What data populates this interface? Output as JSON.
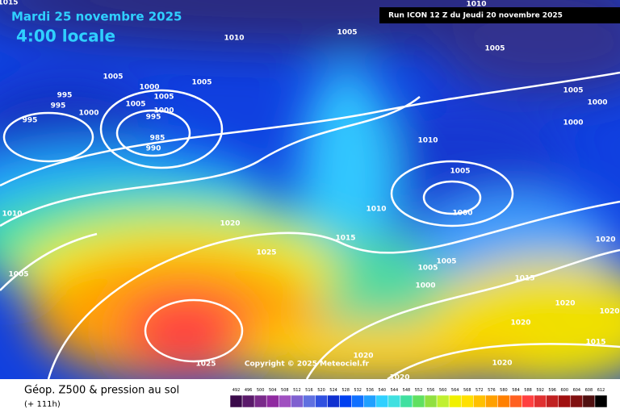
{
  "header": {
    "date": "Mardi 25 novembre 2025",
    "time": "4:00 locale",
    "run": "Run ICON 12 Z du Jeudi 20 novembre 2025"
  },
  "map": {
    "copyright": "Copyright © 2025 Meteociel.fr",
    "isobar_labels": [
      1015,
      1010,
      1005,
      1010,
      1005,
      1005,
      1000,
      1005,
      995,
      995,
      1005,
      1005,
      1000,
      1000,
      995,
      995,
      985,
      990,
      1005,
      1000,
      1000,
      1010,
      1005,
      1000,
      1010,
      1010,
      1020,
      1015,
      1025,
      1020,
      1005,
      1005,
      1005,
      1000,
      1015,
      1020,
      1020,
      1020,
      1015,
      1020,
      1020,
      1025,
      1020
    ]
  },
  "footer": {
    "title": "Géop. Z500 & pression au sol",
    "lead": "(+ 111h)"
  },
  "legend": {
    "scale": [
      492,
      496,
      500,
      504,
      508,
      512,
      516,
      520,
      524,
      528,
      532,
      536,
      540,
      544,
      548,
      552,
      556,
      560,
      564,
      568,
      572,
      576,
      580,
      584,
      588,
      592,
      596,
      600,
      604,
      608,
      612
    ],
    "colors": [
      "#3a0a4a",
      "#5a1a6a",
      "#7a2a8a",
      "#902aa0",
      "#a050c0",
      "#8060d0",
      "#6070e0",
      "#3050e0",
      "#1030d0",
      "#0040f0",
      "#1070ff",
      "#20a0ff",
      "#30d0ff",
      "#40e0e0",
      "#40e0a0",
      "#60e060",
      "#90e040",
      "#c0f030",
      "#f0f000",
      "#ffe000",
      "#ffc000",
      "#ffa000",
      "#ff8000",
      "#ff6020",
      "#ff4040",
      "#e03030",
      "#c02020",
      "#a01010",
      "#801010",
      "#501010",
      "#000000"
    ]
  }
}
